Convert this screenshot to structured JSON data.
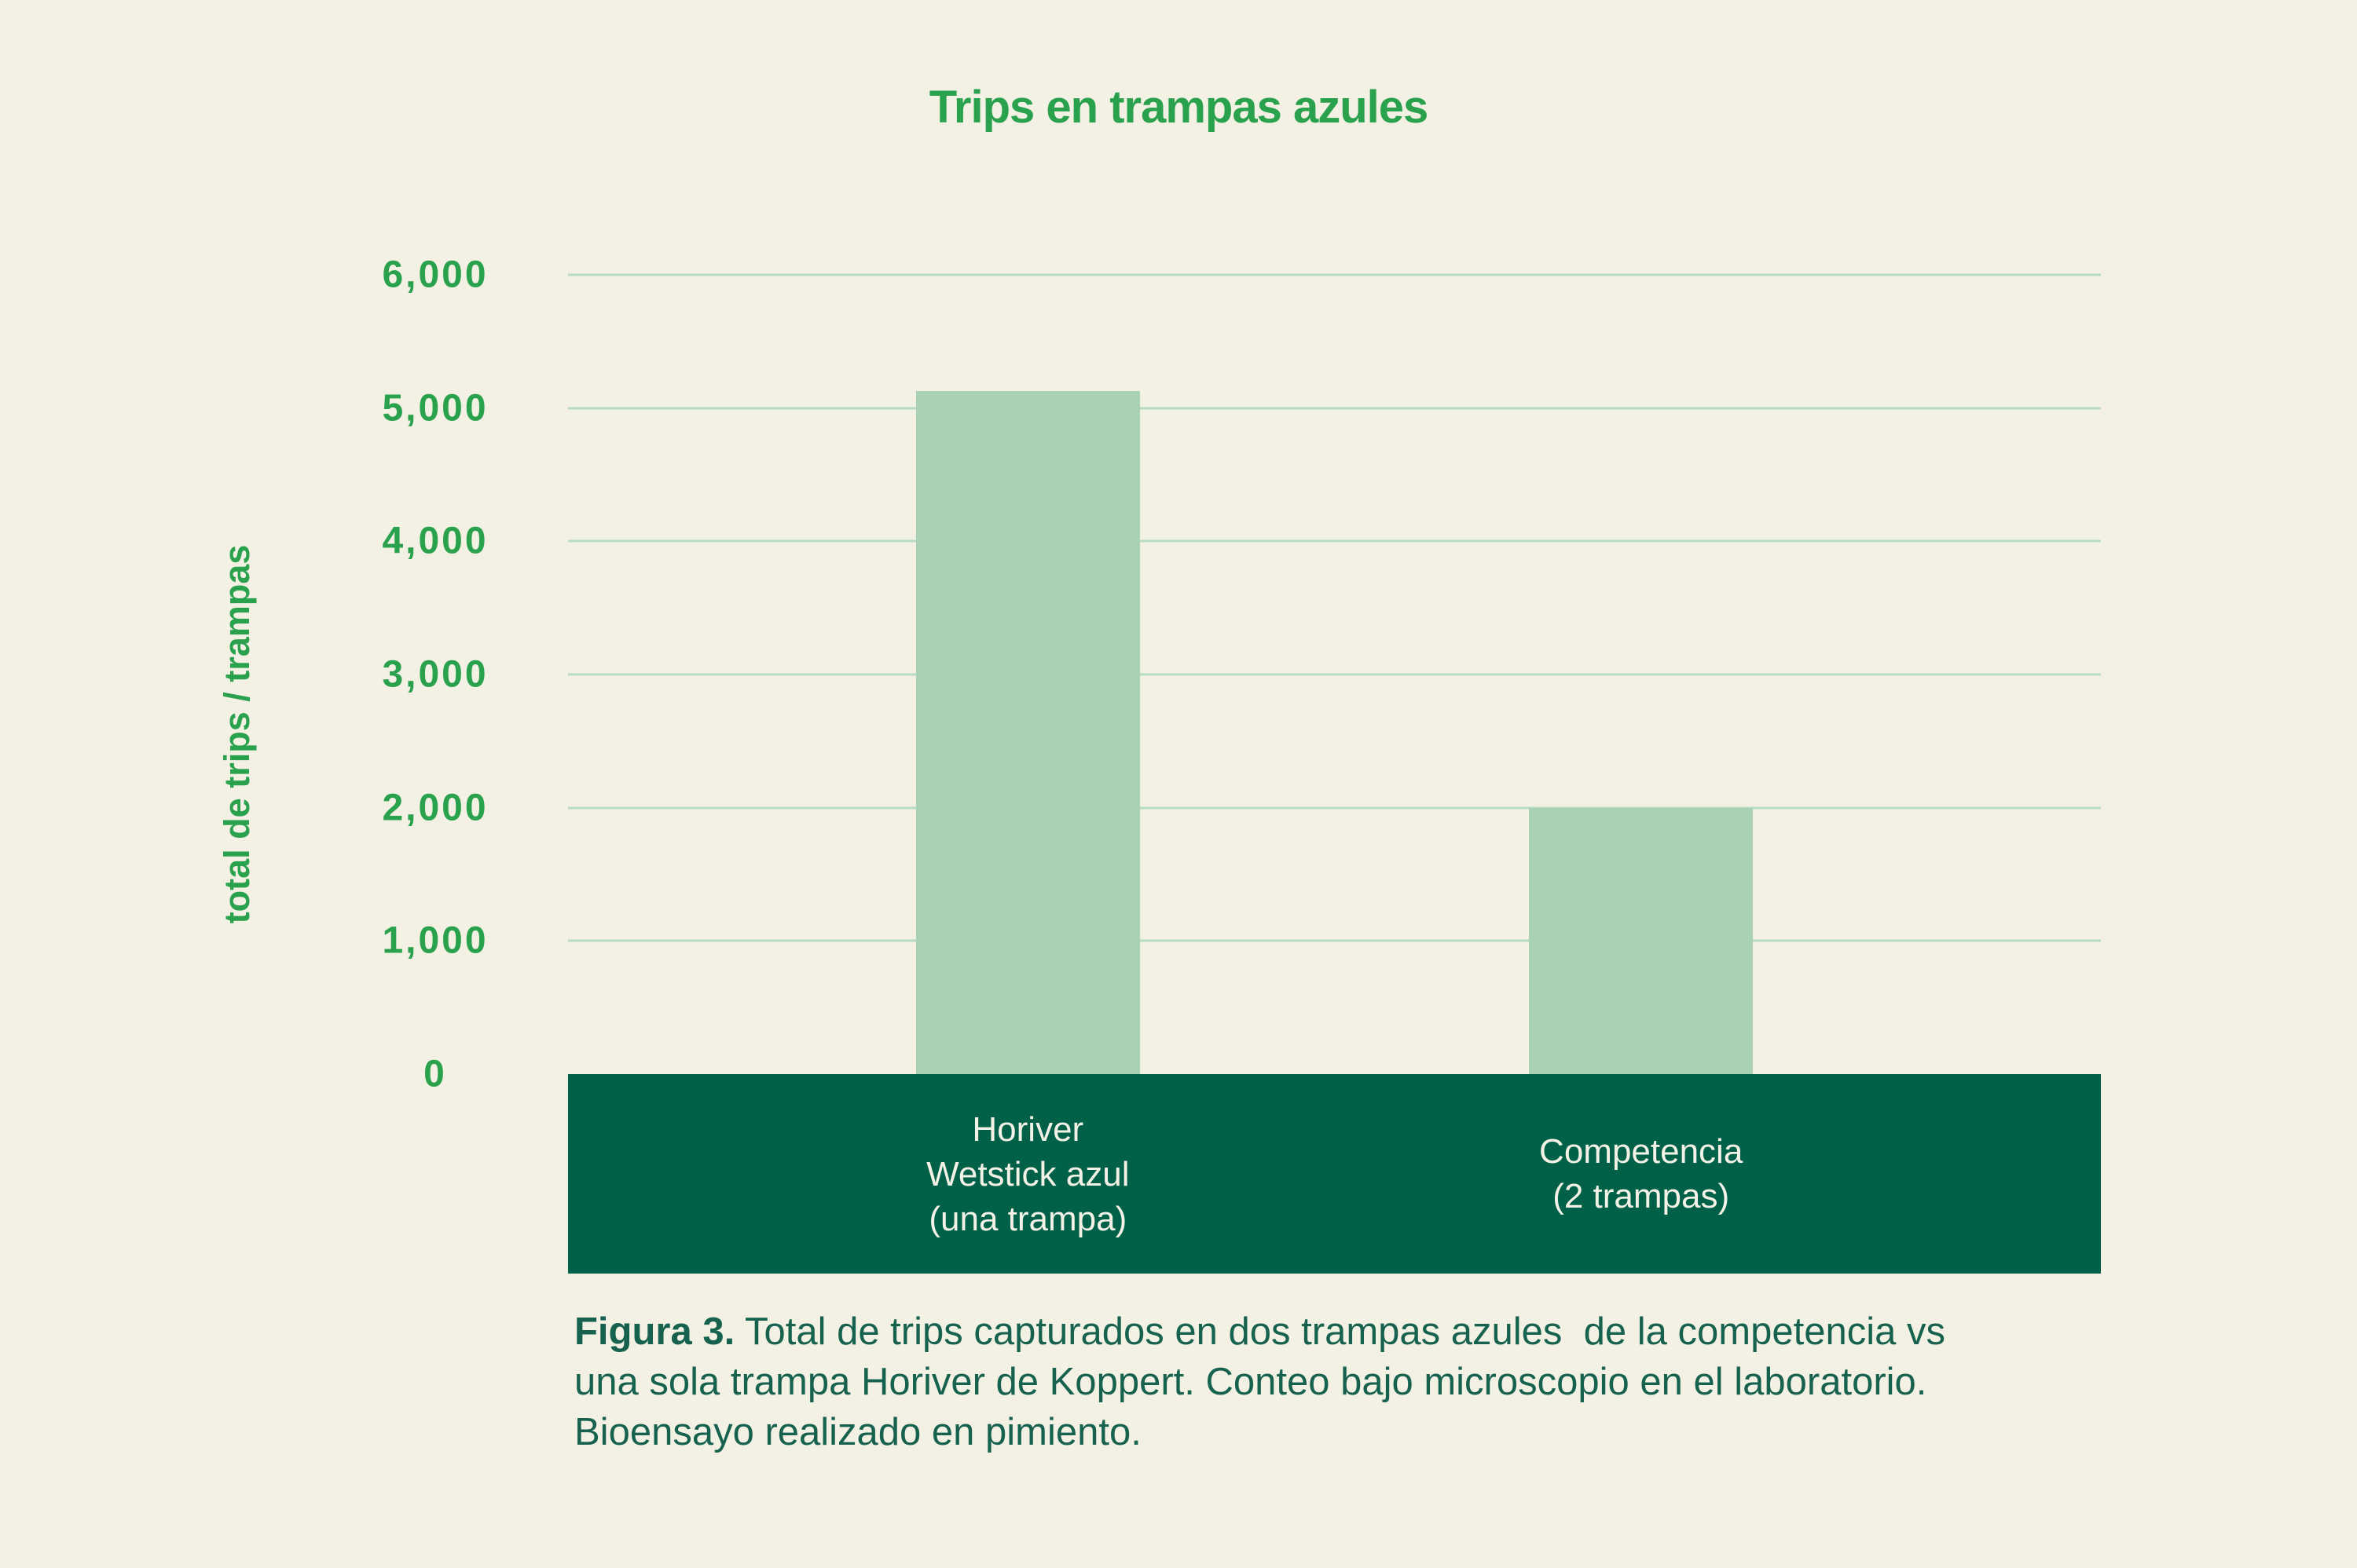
{
  "chart_data": {
    "type": "bar",
    "title": "Trips en trampas azules",
    "ylabel": "total de trips / trampas",
    "xlabel": "",
    "categories": [
      {
        "label_lines": [
          "Horiver",
          "Wetstick azul",
          "(una trampa)"
        ]
      },
      {
        "label_lines": [
          "Competencia",
          "(2 trampas)"
        ]
      }
    ],
    "values": [
      5130,
      2000
    ],
    "ylim": [
      0,
      6000
    ],
    "yticks": [
      0,
      1000,
      2000,
      3000,
      4000,
      5000,
      6000
    ],
    "grid": true,
    "legend_position": "none",
    "colors": {
      "background": "#f3f0e4",
      "bar_fill": "#a9d2b3",
      "axis_band": "#006148",
      "axis_text": "#2aa24d",
      "gridline": "#b7dcc3",
      "category_text": "#f4f2e7",
      "caption_text": "#16624e"
    }
  },
  "caption": {
    "prefix": "Figura 3.",
    "line1": " Total de trips capturados en dos trampas azules  de la competencia vs",
    "line2": "una sola trampa Horiver de Koppert. Conteo bajo microscopio en el laboratorio.",
    "line3": "Bioensayo realizado en pimiento."
  }
}
